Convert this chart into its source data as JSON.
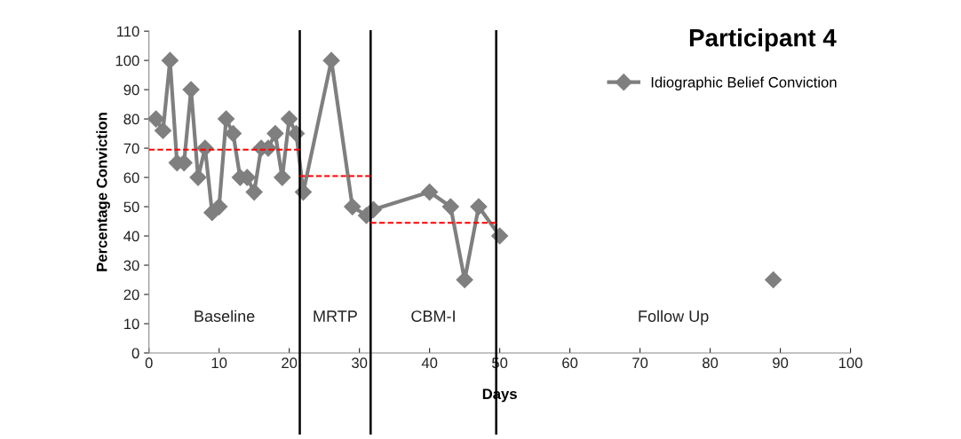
{
  "chart_data": {
    "type": "line",
    "title": "Participant 4",
    "xlabel": "Days",
    "ylabel": "Percentage Conviction",
    "xlim": [
      0,
      100
    ],
    "xticks": [
      0,
      10,
      20,
      30,
      40,
      50,
      60,
      70,
      80,
      90,
      100
    ],
    "ylim": [
      0,
      110
    ],
    "yticks": [
      0,
      10,
      20,
      30,
      40,
      50,
      60,
      70,
      80,
      90,
      100,
      110
    ],
    "grid": false,
    "legend": "top right",
    "marker": "diamond",
    "line_style": "solid",
    "series": [
      {
        "name": "Idiographic Belief Conviction",
        "color": "#7f7f7f",
        "x": [
          1,
          2,
          3,
          4,
          5,
          6,
          7,
          8,
          9,
          10,
          11,
          12,
          13,
          14,
          15,
          16,
          17,
          18,
          19,
          20,
          21,
          22,
          26,
          29,
          31,
          32,
          40,
          43,
          45,
          47,
          50,
          70,
          89
        ],
        "values": [
          80,
          76,
          100,
          65,
          65,
          90,
          60,
          70,
          48,
          50,
          80,
          75,
          60,
          60,
          55,
          70,
          70,
          75,
          60,
          80,
          75,
          55,
          100,
          50,
          47,
          49,
          55,
          50,
          25,
          50,
          40,
          null,
          25
        ]
      },
      {
        "color": "#ff0000",
        "line_style": "dashed",
        "marker": "none",
        "x": [
          0,
          21.5
        ],
        "values": [
          69.5,
          69.5
        ]
      },
      {
        "color": "#ff0000",
        "line_style": "dashed",
        "marker": "none",
        "x": [
          21.5,
          31.6
        ],
        "values": [
          60.5,
          60.5
        ]
      },
      {
        "color": "#ff0000",
        "line_style": "dashed",
        "marker": "none",
        "x": [
          31.6,
          49.5
        ],
        "values": [
          44.5,
          44.5
        ]
      }
    ],
    "ref_lines": [
      {
        "axis": "x",
        "value": 21.5,
        "color": "#000000"
      },
      {
        "axis": "x",
        "value": 31.6,
        "color": "#000000"
      },
      {
        "axis": "x",
        "value": 49.5,
        "color": "#000000"
      }
    ],
    "annotations": [
      "Baseline",
      "MRTP",
      "CBM-I",
      "Follow Up"
    ]
  }
}
